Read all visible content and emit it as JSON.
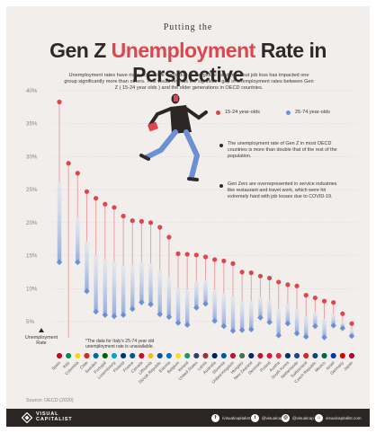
{
  "header": {
    "subtitle": "Putting the",
    "title_pre": "Gen Z ",
    "title_hl": "Unemployment",
    "title_post": " Rate in Perspective",
    "intro": "Unemployment rates have risen across the world due to the global pandemic, but job loss has impacted one group significantly more than others. This visual reveals the significant gap in unemployment rates between Gen Z ( 15-24 year olds ) and the older generations in OECD countries."
  },
  "legend": {
    "youth_label": "15-24 year-olds",
    "older_label": "25-74 year-olds"
  },
  "notes": [
    "The unemployment rate of Gen Z in most OECD countries is more than double that of the rest of the population.",
    "Gen Zers are overrepresented in service industries like restaurant and travel work, which were hit extremely hard with job losses due to COVID-19."
  ],
  "footnote": "*The data for Italy's 25-74 year old unemployment rate is unavailable.",
  "y_axis_label": "Unemployment Rate",
  "source": "Source: OECD (2020)",
  "brand": {
    "line1": "VISUAL",
    "line2": "CAPITALIST"
  },
  "social": [
    {
      "icon": "facebook-icon",
      "glyph": "f",
      "handle": "/visualcapitalist"
    },
    {
      "icon": "twitter-icon",
      "glyph": "t",
      "handle": "@visualcap"
    },
    {
      "icon": "instagram-icon",
      "glyph": "◎",
      "handle": "@visualcap"
    },
    {
      "icon": "web-icon",
      "glyph": "⌂",
      "handle": "visualcapitalist.com"
    }
  ],
  "colors": {
    "youth": "#e0454e",
    "older": "#6d8fd3",
    "dark": "#2f2a28",
    "background": "#f1eeec"
  },
  "chart_data": {
    "type": "scatter",
    "y_ticks": [
      "5%",
      "10%",
      "15%",
      "20%",
      "25%",
      "30%",
      "35%",
      "40%"
    ],
    "ylim": [
      2,
      40
    ],
    "categories": [
      "Spain",
      "Italy",
      "Colombia",
      "Chile",
      "Sweden",
      "Portugal",
      "Luxembourg",
      "Finland",
      "France",
      "Canada",
      "Lithuania",
      "Slovak Republic",
      "Estonia",
      "Belgium",
      "Ireland",
      "United States",
      "Latvia",
      "Australia",
      "Slovenia",
      "United Kingdom",
      "Hungary",
      "New Zealand",
      "Denmark",
      "Poland",
      "Austria",
      "South Korea",
      "Netherlands",
      "Switzerland",
      "Czech Republic",
      "Mexico",
      "Israel",
      "Germany",
      "Japan"
    ],
    "series": [
      {
        "name": "15-24 year-olds",
        "values": [
          38.3,
          29.0,
          27.5,
          24.7,
          23.7,
          22.8,
          22.3,
          21.0,
          20.3,
          20.2,
          20.0,
          19.3,
          17.8,
          15.3,
          15.2,
          15.1,
          14.8,
          14.4,
          14.2,
          13.8,
          12.5,
          12.4,
          11.9,
          11.6,
          11.0,
          10.6,
          10.4,
          9.0,
          8.6,
          8.1,
          7.9,
          6.2,
          4.7
        ]
      },
      {
        "name": "25-74 year-olds",
        "values": [
          14.0,
          null,
          14.0,
          9.6,
          6.5,
          6.0,
          5.8,
          6.0,
          6.9,
          7.9,
          7.6,
          6.1,
          5.7,
          4.8,
          4.5,
          7.1,
          7.7,
          5.1,
          4.3,
          3.6,
          3.7,
          3.8,
          5.6,
          4.9,
          2.9,
          4.7,
          3.2,
          2.7,
          4.3,
          2.6,
          4.4,
          4.0,
          2.8
        ]
      }
    ]
  }
}
